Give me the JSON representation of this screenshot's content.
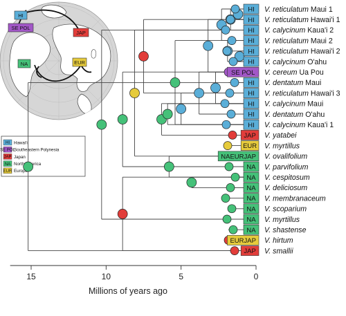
{
  "chart_data": {
    "type": "phylogeny",
    "axis": {
      "title": "Millions of years ago",
      "ticks": [
        15,
        10,
        5,
        0
      ],
      "range": [
        16.4,
        0
      ]
    },
    "region_colors": {
      "HI": "#5aaed8",
      "SE POL": "#a257c7",
      "JAP": "#e23d3a",
      "NA": "#45c179",
      "EUR": "#e6cb3c"
    },
    "legend": [
      {
        "code": "HI",
        "label": "Hawai'i"
      },
      {
        "code": "SE POL",
        "label": "Southeastern Polynesia"
      },
      {
        "code": "JAP",
        "label": "Japan"
      },
      {
        "code": "NA",
        "label": "North America"
      },
      {
        "code": "EUR",
        "label": "Europe"
      }
    ],
    "map_tags": [
      "HI",
      "SE POL",
      "JAP",
      "NA",
      "EUR"
    ],
    "tips": [
      {
        "genus": "V.",
        "epithet": "reticulatum Maui 1",
        "regions": [
          "HI"
        ]
      },
      {
        "genus": "V.",
        "epithet": "reticulatum Hawai'i 1",
        "regions": [
          "HI"
        ]
      },
      {
        "genus": "V.",
        "epithet": "calycinum Kaua'i 2",
        "regions": [
          "HI"
        ]
      },
      {
        "genus": "V.",
        "epithet": "reticulatum Maui 2",
        "regions": [
          "HI"
        ]
      },
      {
        "genus": "V.",
        "epithet": "reticulatum Hawai'i 2",
        "regions": [
          "HI"
        ]
      },
      {
        "genus": "V.",
        "epithet": "calycinum O'ahu",
        "regions": [
          "HI"
        ]
      },
      {
        "genus": "V.",
        "epithet": "cereum Ua Pou",
        "regions": [
          "SE POL"
        ]
      },
      {
        "genus": "V.",
        "epithet": "dentatum Maui",
        "regions": [
          "HI"
        ]
      },
      {
        "genus": "V.",
        "epithet": "reticulatum Hawai'i 3",
        "regions": [
          "HI"
        ]
      },
      {
        "genus": "V.",
        "epithet": "calycinum Maui",
        "regions": [
          "HI"
        ]
      },
      {
        "genus": "V.",
        "epithet": "dentatum O'ahu",
        "regions": [
          "HI"
        ]
      },
      {
        "genus": "V.",
        "epithet": "calycinum Kaua'i 1",
        "regions": [
          "HI"
        ]
      },
      {
        "genus": "V.",
        "epithet": "yatabei",
        "regions": [
          "JAP"
        ]
      },
      {
        "genus": "V.",
        "epithet": "myrtillus",
        "regions": [
          "EUR"
        ]
      },
      {
        "genus": "V.",
        "epithet": "ovalifolium",
        "regions": [
          "NA",
          "EUR",
          "JAP"
        ]
      },
      {
        "genus": "V.",
        "epithet": "parvifolium",
        "regions": [
          "NA"
        ]
      },
      {
        "genus": "V.",
        "epithet": "cespitosum",
        "regions": [
          "NA"
        ]
      },
      {
        "genus": "V.",
        "epithet": "deliciosum",
        "regions": [
          "NA"
        ]
      },
      {
        "genus": "V.",
        "epithet": "membranaceum",
        "regions": [
          "NA"
        ]
      },
      {
        "genus": "V.",
        "epithet": "scoparium",
        "regions": [
          "NA"
        ]
      },
      {
        "genus": "V.",
        "epithet": "myrtillus",
        "regions": [
          "NA"
        ]
      },
      {
        "genus": "V.",
        "epithet": "shastense",
        "regions": [
          "NA"
        ]
      },
      {
        "genus": "V.",
        "epithet": "hirtum",
        "regions": [
          "EUR",
          "JAP"
        ]
      },
      {
        "genus": "V.",
        "epithet": "smallii",
        "regions": [
          "JAP"
        ]
      }
    ],
    "nodes": [
      {
        "age": 15.2,
        "rows": [
          7,
          23
        ],
        "regions": [
          "NA"
        ]
      },
      {
        "age": 10.3,
        "rows": [
          2,
          20
        ],
        "regions": [
          "NA"
        ]
      },
      {
        "age": 8.9,
        "rows": [
          16,
          23
        ],
        "regions": [
          "JAP"
        ]
      },
      {
        "age": 8.9,
        "rows": [
          6,
          15
        ],
        "regions": [
          "NA"
        ]
      },
      {
        "age": 8.1,
        "rows": [
          2,
          14
        ],
        "regions": [
          "EUR"
        ]
      },
      {
        "age": 7.5,
        "rows": [
          1,
          8
        ],
        "regions": [
          "JAP"
        ]
      },
      {
        "age": 6.3,
        "rows": [
          9,
          12
        ],
        "regions": [
          "NA"
        ]
      },
      {
        "age": 5.9,
        "rows": [
          9,
          11
        ],
        "regions": [
          "NA"
        ]
      },
      {
        "age": 5.8,
        "rows": [
          14,
          16
        ],
        "regions": [
          "NA"
        ]
      },
      {
        "age": 5.4,
        "rows": [
          3,
          11
        ],
        "regions": [
          "NA"
        ]
      },
      {
        "age": 4.3,
        "rows": [
          16,
          17
        ],
        "regions": [
          "NA"
        ]
      },
      {
        "age": 5.0,
        "rows": [
          8,
          11
        ],
        "regions": [
          "HI"
        ]
      },
      {
        "age": 3.8,
        "rows": [
          6,
          10
        ],
        "regions": [
          "HI"
        ]
      },
      {
        "age": 3.2,
        "rows": [
          1,
          6
        ],
        "regions": [
          "HI"
        ]
      },
      {
        "age": 2.7,
        "rows": [
          6,
          9
        ],
        "regions": [
          "HI"
        ]
      },
      {
        "age": 2.3,
        "rows": [
          0,
          3
        ],
        "regions": [
          "HI"
        ]
      },
      {
        "age": 1.9,
        "rows": [
          3,
          5
        ],
        "regions": [
          "HI"
        ]
      },
      {
        "age": 1.7,
        "rows": [
          0,
          2
        ],
        "regions": [
          "HI"
        ]
      },
      {
        "age": 1.2,
        "rows": [
          0,
          1
        ],
        "regions": [
          "HI"
        ]
      },
      {
        "age": 1.1,
        "rows": [
          4,
          5
        ],
        "regions": [
          "HI"
        ]
      }
    ]
  }
}
